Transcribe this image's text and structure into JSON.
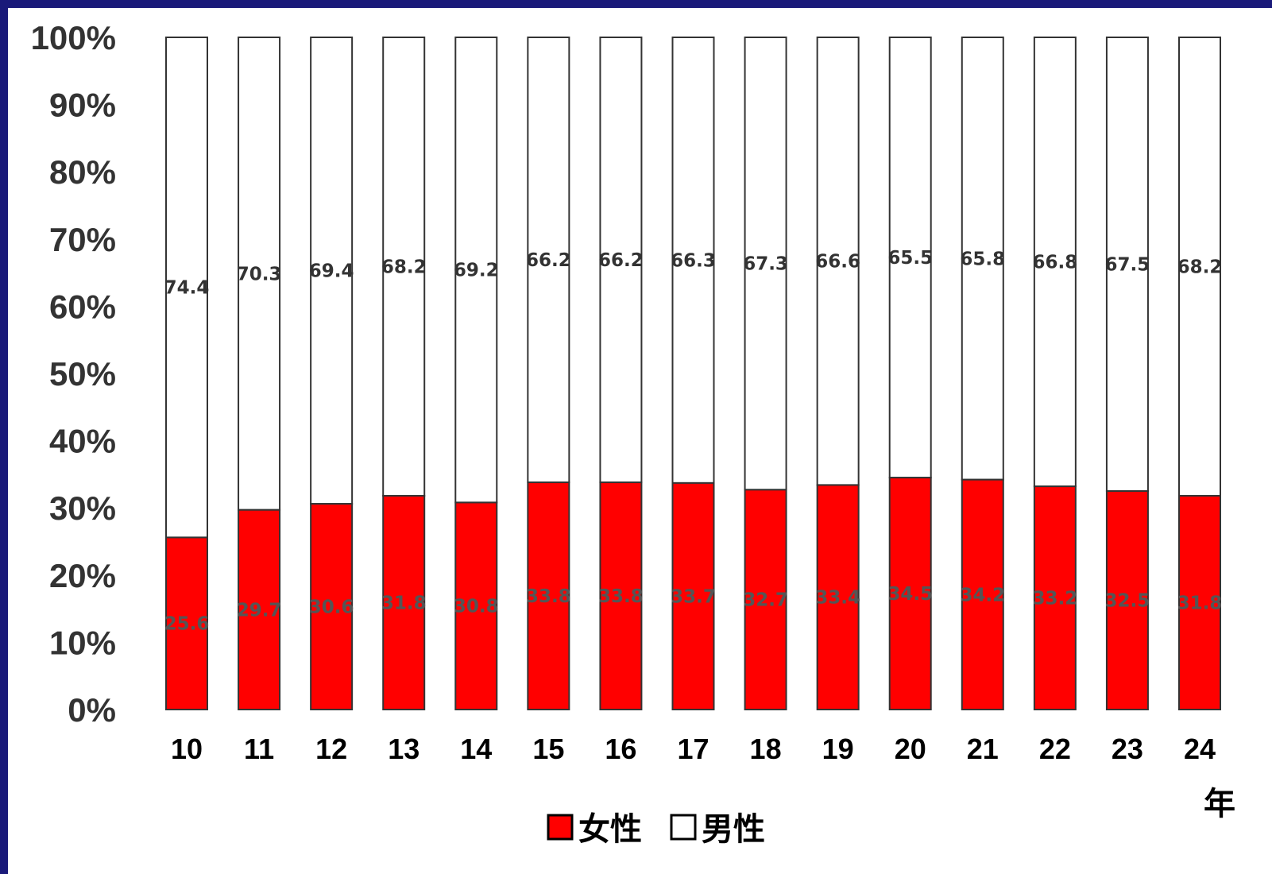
{
  "chart_data": {
    "type": "bar",
    "stacked": true,
    "percent_stacked": true,
    "categories": [
      "10",
      "11",
      "12",
      "13",
      "14",
      "15",
      "16",
      "17",
      "18",
      "19",
      "20",
      "21",
      "22",
      "23",
      "24"
    ],
    "x_unit": "年",
    "series": [
      {
        "name": "女性",
        "color": "#ff0000",
        "values": [
          25.6,
          29.7,
          30.6,
          31.8,
          30.8,
          33.8,
          33.8,
          33.7,
          32.7,
          33.4,
          34.5,
          34.2,
          33.2,
          32.5,
          31.8
        ]
      },
      {
        "name": "男性",
        "color": "#ffffff",
        "values": [
          74.4,
          70.3,
          69.4,
          68.2,
          69.2,
          66.2,
          66.2,
          66.3,
          67.3,
          66.6,
          65.5,
          65.8,
          66.8,
          67.5,
          68.2
        ]
      }
    ],
    "y_ticks": [
      "0%",
      "10%",
      "20%",
      "30%",
      "40%",
      "50%",
      "60%",
      "70%",
      "80%",
      "90%",
      "100%"
    ],
    "ylim": [
      0,
      100
    ],
    "grid": false,
    "legend_position": "bottom-center",
    "title": "",
    "xlabel": "",
    "ylabel": ""
  }
}
